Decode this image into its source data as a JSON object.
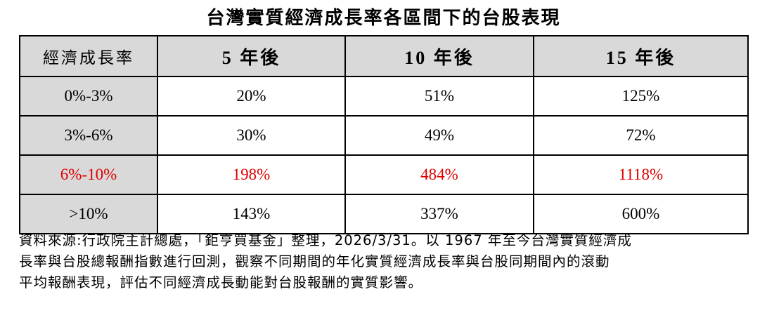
{
  "title": "台灣實質經濟成長率各區間下的台股表現",
  "table": {
    "headers": [
      "經濟成長率",
      "5 年後",
      "10 年後",
      "15 年後"
    ],
    "rows": [
      {
        "range": "0%-3%",
        "y5": "20%",
        "y10": "51%",
        "y15": "125%",
        "highlight": false
      },
      {
        "range": "3%-6%",
        "y5": "30%",
        "y10": "49%",
        "y15": "72%",
        "highlight": false
      },
      {
        "range": "6%-10%",
        "y5": "198%",
        "y10": "484%",
        "y15": "1118%",
        "highlight": true
      },
      {
        "range": ">10%",
        "y5": "143%",
        "y10": "337%",
        "y15": "600%",
        "highlight": false
      }
    ]
  },
  "colors": {
    "header_bg": "#d9d9d9",
    "highlight_text": "#e00000",
    "border": "#000000"
  },
  "source_note": {
    "lines": [
      "資料來源:行政院主計總處，「鉅亨買基金」整理，2026/3/31。以 1967 年至今台灣實質經濟成",
      "長率與台股總報酬指數進行回測，觀察不同期間的年化實質經濟成長率與台股同期間內的滾動",
      "平均報酬表現，評估不同經濟成長動能對台股報酬的實質影響。"
    ]
  }
}
